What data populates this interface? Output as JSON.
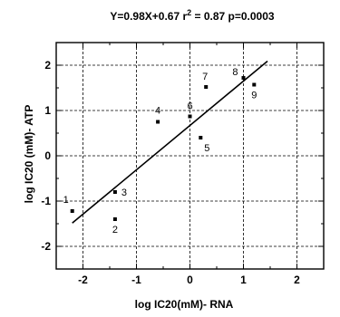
{
  "chart_data": {
    "type": "scatter",
    "title_parts": {
      "pre": "Y=0.98X+0.67  r",
      "sup": "2",
      "post": " = 0.87  p=0.0003"
    },
    "xlabel": "log IC20(mM)- RNA",
    "ylabel": "log IC20 (mM)- ATP",
    "xlim": [
      -2.5,
      2.5
    ],
    "ylim": [
      -2.5,
      2.5
    ],
    "xticks": [
      -2,
      -1,
      0,
      1,
      2
    ],
    "yticks": [
      -2,
      -1,
      0,
      1,
      2
    ],
    "grid": true,
    "points": [
      {
        "label": "1",
        "x": -2.2,
        "y": -1.22
      },
      {
        "label": "2",
        "x": -1.4,
        "y": -1.4
      },
      {
        "label": "3",
        "x": -1.4,
        "y": -0.8
      },
      {
        "label": "4",
        "x": -0.6,
        "y": 0.75
      },
      {
        "label": "5",
        "x": 0.2,
        "y": 0.4
      },
      {
        "label": "6",
        "x": 0.0,
        "y": 0.87
      },
      {
        "label": "7",
        "x": 0.3,
        "y": 1.52
      },
      {
        "label": "8",
        "x": 1.0,
        "y": 1.72
      },
      {
        "label": "9",
        "x": 1.2,
        "y": 1.57
      }
    ],
    "fit_line": {
      "slope": 0.98,
      "intercept": 0.67,
      "x_range": [
        -2.2,
        1.45
      ]
    }
  }
}
